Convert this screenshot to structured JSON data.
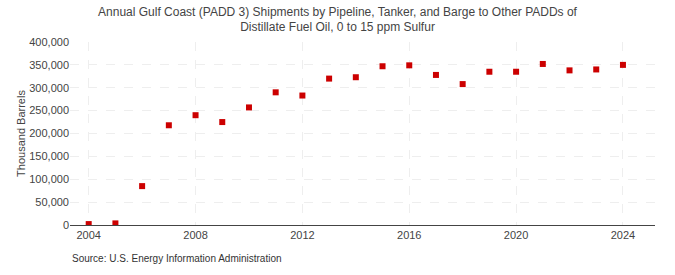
{
  "chart_data": {
    "type": "scatter",
    "title": "Annual Gulf Coast (PADD 3) Shipments by Pipeline, Tanker, and Barge to Other PADDs of\nDistillate Fuel Oil, 0 to 15 ppm Sulfur",
    "ylabel": "Thousand Barrels",
    "source": "Source: U.S. Energy Information Administration",
    "x": [
      2004,
      2005,
      2006,
      2007,
      2008,
      2009,
      2010,
      2011,
      2012,
      2013,
      2014,
      2015,
      2016,
      2017,
      2018,
      2019,
      2020,
      2021,
      2022,
      2023,
      2024
    ],
    "values": [
      2000,
      3500,
      85000,
      218000,
      240000,
      225000,
      257000,
      290000,
      283000,
      320000,
      323000,
      347000,
      349000,
      328000,
      308000,
      335000,
      335000,
      352000,
      338000,
      340000,
      350000
    ],
    "color": "#cc0000",
    "marker": "square",
    "xlim": [
      2003.3,
      2025.2
    ],
    "xticks": [
      2004,
      2008,
      2012,
      2016,
      2020,
      2024
    ],
    "ylim": [
      0,
      400000
    ],
    "yticks": [
      0,
      {
        "value": 50000,
        "label": "50,000"
      },
      {
        "value": 100000,
        "label": "100,000"
      },
      {
        "value": 150000,
        "label": "150,000"
      },
      {
        "value": 200000,
        "label": "200,000"
      },
      {
        "value": 250000,
        "label": "250,000"
      },
      {
        "value": 300000,
        "label": "300,000"
      },
      {
        "value": 350000,
        "label": "350,000"
      },
      {
        "value": 400000,
        "label": "400,000"
      }
    ],
    "grid": true
  }
}
